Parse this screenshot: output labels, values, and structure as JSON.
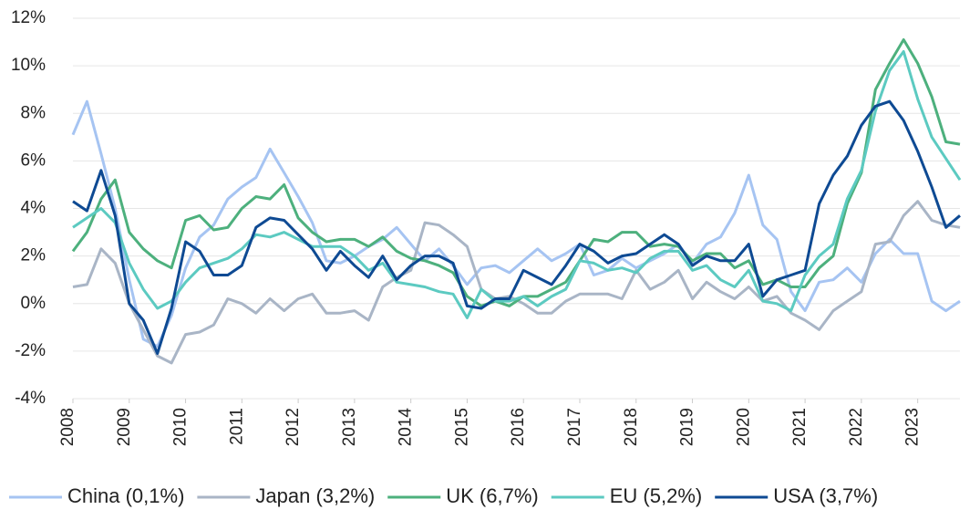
{
  "chart_data": {
    "type": "line",
    "x": [
      2008,
      2008.25,
      2008.5,
      2008.75,
      2009,
      2009.25,
      2009.5,
      2009.75,
      2010,
      2010.25,
      2010.5,
      2010.75,
      2011,
      2011.25,
      2011.5,
      2011.75,
      2012,
      2012.25,
      2012.5,
      2012.75,
      2013,
      2013.25,
      2013.5,
      2013.75,
      2014,
      2014.25,
      2014.5,
      2014.75,
      2015,
      2015.25,
      2015.5,
      2015.75,
      2016,
      2016.25,
      2016.5,
      2016.75,
      2017,
      2017.25,
      2017.5,
      2017.75,
      2018,
      2018.25,
      2018.5,
      2018.75,
      2019,
      2019.25,
      2019.5,
      2019.75,
      2020,
      2020.25,
      2020.5,
      2020.75,
      2021,
      2021.25,
      2021.5,
      2021.75,
      2022,
      2022.25,
      2022.5,
      2022.75,
      2023,
      2023.25,
      2023.5,
      2023.75
    ],
    "xlim": [
      2008,
      2023.75
    ],
    "xticks": [
      2008,
      2009,
      2010,
      2011,
      2012,
      2013,
      2014,
      2015,
      2016,
      2017,
      2018,
      2019,
      2020,
      2021,
      2022,
      2023
    ],
    "ylim": [
      -4,
      12
    ],
    "yticks": [
      {
        "value": -4,
        "label": "-4%"
      },
      {
        "value": -2,
        "label": "-2%"
      },
      {
        "value": 0,
        "label": "0%"
      },
      {
        "value": 2,
        "label": "2%"
      },
      {
        "value": 4,
        "label": "4%"
      },
      {
        "value": 6,
        "label": "6%"
      },
      {
        "value": 8,
        "label": "8%"
      },
      {
        "value": 10,
        "label": "10%"
      },
      {
        "value": 12,
        "label": "12%"
      }
    ],
    "grid": true,
    "legend": "bottom",
    "series": [
      {
        "name": "China (0,1%)",
        "color": "#a6c4f2",
        "values": [
          7.1,
          8.5,
          6.3,
          4.0,
          1.0,
          -1.5,
          -1.8,
          -0.5,
          1.5,
          2.8,
          3.3,
          4.4,
          4.9,
          5.3,
          6.5,
          5.5,
          4.5,
          3.4,
          1.8,
          1.7,
          2.0,
          2.4,
          2.7,
          3.2,
          2.5,
          1.8,
          2.3,
          1.6,
          0.8,
          1.5,
          1.6,
          1.3,
          1.8,
          2.3,
          1.8,
          2.1,
          2.5,
          1.2,
          1.4,
          1.9,
          1.5,
          1.8,
          2.1,
          2.5,
          1.7,
          2.5,
          2.8,
          3.8,
          5.4,
          3.3,
          2.7,
          0.5,
          -0.3,
          0.9,
          1.0,
          1.5,
          0.9,
          2.1,
          2.7,
          2.1,
          2.1,
          0.1,
          -0.3,
          0.1
        ]
      },
      {
        "name": "Japan (3,2%)",
        "color": "#a9b5c6",
        "values": [
          0.7,
          0.8,
          2.3,
          1.7,
          0.0,
          -1.1,
          -2.2,
          -2.5,
          -1.3,
          -1.2,
          -0.9,
          0.2,
          0.0,
          -0.4,
          0.2,
          -0.3,
          0.2,
          0.4,
          -0.4,
          -0.4,
          -0.3,
          -0.7,
          0.7,
          1.1,
          1.4,
          3.4,
          3.3,
          2.9,
          2.4,
          0.6,
          0.2,
          0.3,
          0.0,
          -0.4,
          -0.4,
          0.1,
          0.4,
          0.4,
          0.4,
          0.2,
          1.4,
          0.6,
          0.9,
          1.4,
          0.2,
          0.9,
          0.5,
          0.2,
          0.7,
          0.1,
          0.3,
          -0.4,
          -0.7,
          -1.1,
          -0.3,
          0.1,
          0.5,
          2.5,
          2.6,
          3.7,
          4.3,
          3.5,
          3.3,
          3.2
        ]
      },
      {
        "name": "UK (6,7%)",
        "color": "#4db07d",
        "values": [
          2.2,
          3.0,
          4.4,
          5.2,
          3.0,
          2.3,
          1.8,
          1.5,
          3.5,
          3.7,
          3.1,
          3.2,
          4.0,
          4.5,
          4.4,
          5.0,
          3.6,
          3.0,
          2.6,
          2.7,
          2.7,
          2.4,
          2.8,
          2.2,
          1.9,
          1.8,
          1.6,
          1.3,
          0.3,
          -0.1,
          0.1,
          -0.1,
          0.3,
          0.3,
          0.6,
          0.9,
          1.8,
          2.7,
          2.6,
          3.0,
          3.0,
          2.4,
          2.5,
          2.4,
          1.8,
          2.1,
          2.1,
          1.5,
          1.8,
          0.8,
          1.0,
          0.7,
          0.7,
          1.5,
          2.0,
          4.2,
          5.5,
          9.0,
          10.1,
          11.1,
          10.1,
          8.7,
          6.8,
          6.7
        ]
      },
      {
        "name": "EU (5,2%)",
        "color": "#5ccac1",
        "values": [
          3.2,
          3.6,
          4.0,
          3.4,
          1.7,
          0.6,
          -0.2,
          0.1,
          0.9,
          1.5,
          1.7,
          1.9,
          2.3,
          2.9,
          2.8,
          3.0,
          2.7,
          2.4,
          2.4,
          2.4,
          2.0,
          1.4,
          1.7,
          0.9,
          0.8,
          0.7,
          0.5,
          0.4,
          -0.6,
          0.6,
          0.1,
          0.1,
          0.3,
          -0.1,
          0.3,
          0.6,
          1.8,
          1.7,
          1.4,
          1.5,
          1.3,
          1.9,
          2.2,
          2.2,
          1.4,
          1.6,
          1.0,
          0.7,
          1.4,
          0.1,
          0.0,
          -0.3,
          1.2,
          2.0,
          2.5,
          4.4,
          5.6,
          8.1,
          9.8,
          10.6,
          8.6,
          7.0,
          6.1,
          5.2
        ]
      },
      {
        "name": "USA (3,7%)",
        "color": "#0e4a93",
        "values": [
          4.3,
          3.9,
          5.6,
          3.7,
          0.0,
          -0.7,
          -2.1,
          -0.2,
          2.6,
          2.2,
          1.2,
          1.2,
          1.6,
          3.2,
          3.6,
          3.5,
          2.9,
          2.3,
          1.4,
          2.2,
          1.6,
          1.1,
          2.0,
          1.0,
          1.6,
          2.0,
          2.0,
          1.7,
          -0.1,
          -0.2,
          0.2,
          0.2,
          1.4,
          1.1,
          0.8,
          1.6,
          2.5,
          2.2,
          1.7,
          2.0,
          2.1,
          2.5,
          2.9,
          2.5,
          1.6,
          2.0,
          1.8,
          1.8,
          2.5,
          0.3,
          1.0,
          1.2,
          1.4,
          4.2,
          5.4,
          6.2,
          7.5,
          8.3,
          8.5,
          7.7,
          6.4,
          4.9,
          3.2,
          3.7
        ]
      }
    ]
  }
}
